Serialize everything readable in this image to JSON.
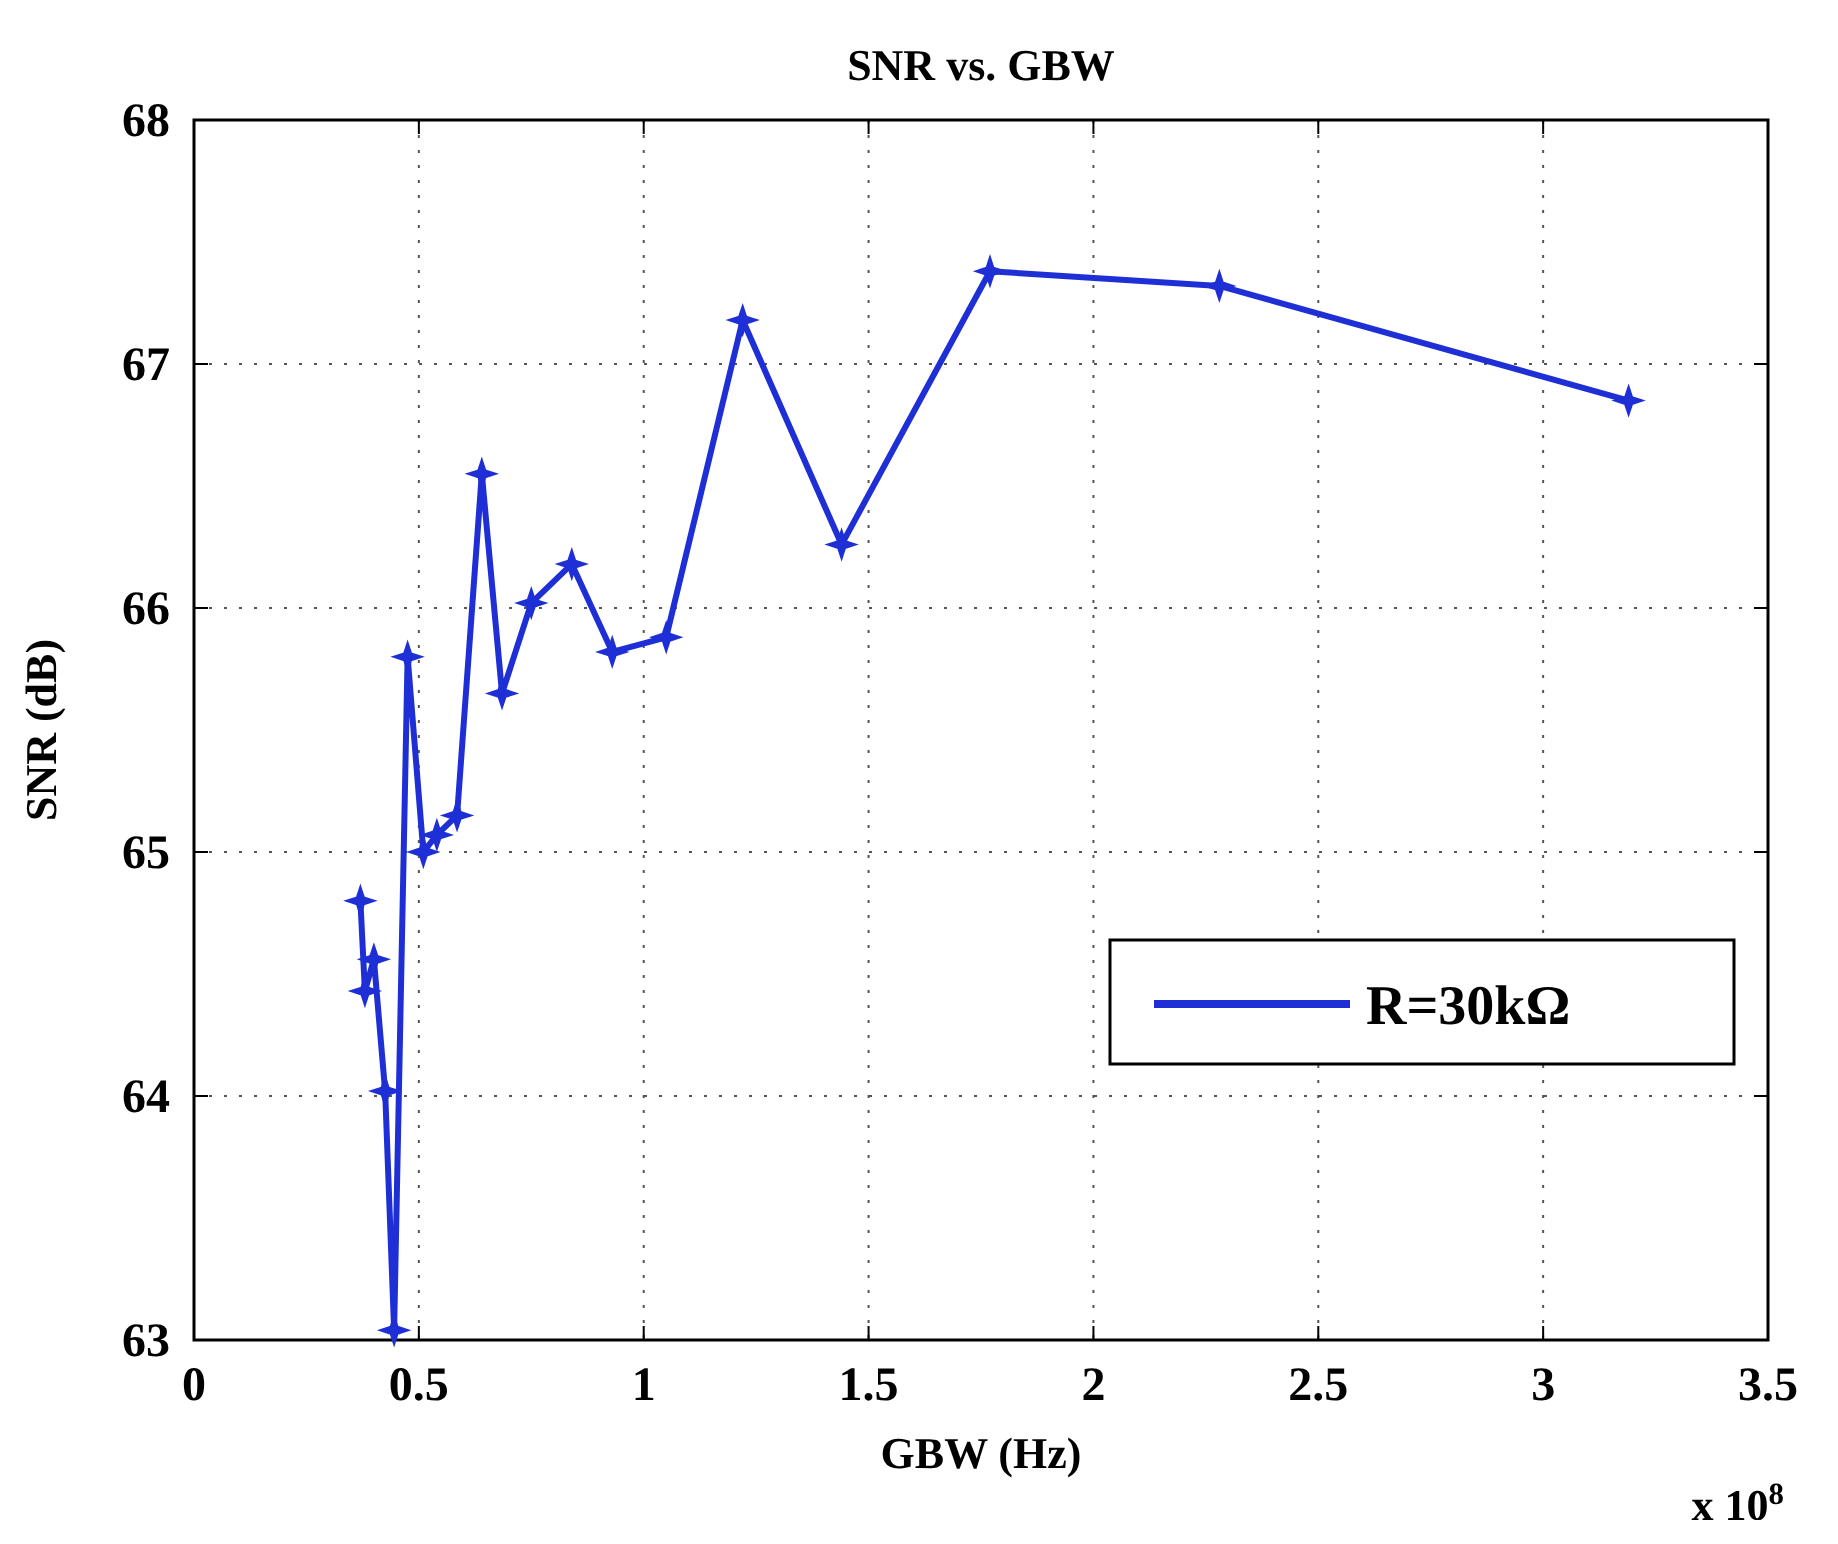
{
  "chart_data": {
    "type": "line",
    "title": "SNR vs. GBW",
    "xlabel": "GBW (Hz)",
    "ylabel": "SNR (dB)",
    "x": [
      0.37,
      0.38,
      0.4,
      0.425,
      0.445,
      0.475,
      0.51,
      0.54,
      0.585,
      0.64,
      0.685,
      0.75,
      0.84,
      0.93,
      1.05,
      1.22,
      1.44,
      1.77,
      2.28,
      3.19
    ],
    "series": [
      {
        "name": "R=30kΩ",
        "color": "#1f2fd6",
        "values": [
          64.8,
          64.43,
          64.56,
          64.02,
          63.04,
          65.8,
          65.0,
          65.07,
          65.15,
          66.55,
          65.65,
          66.02,
          66.18,
          65.82,
          65.88,
          67.18,
          66.26,
          67.38,
          67.32,
          66.85
        ]
      }
    ],
    "xlim": [
      0,
      3.5
    ],
    "xticks": [
      0,
      0.5,
      1,
      1.5,
      2,
      2.5,
      3,
      3.5
    ],
    "ylim": [
      63,
      68
    ],
    "yticks": [
      63,
      64,
      65,
      66,
      67,
      68
    ],
    "annotations": [
      "x 10$^{8}$"
    ],
    "grid": true,
    "legend": "right",
    "marker": "star",
    "line_style": "solid"
  }
}
